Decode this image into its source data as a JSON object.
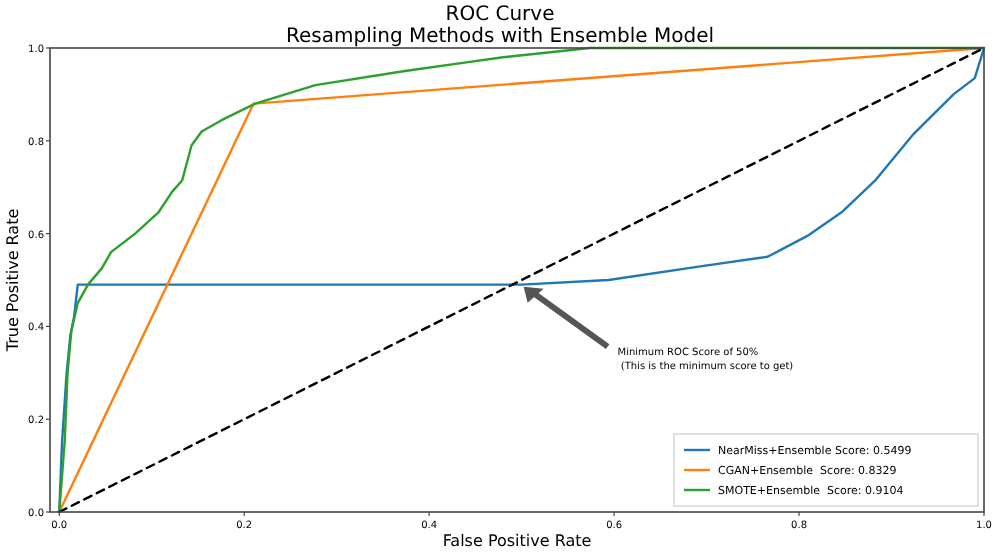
{
  "chart_data": {
    "type": "line",
    "title": "ROC Curve",
    "subtitle": "Resampling Methods with Ensemble Model",
    "xlabel": "False Positive Rate",
    "ylabel": "True Positive Rate",
    "xlim": [
      -0.01,
      1.0
    ],
    "ylim": [
      0,
      1
    ],
    "xticks": [
      {
        "value": 0,
        "label": "0.0"
      },
      {
        "value": 0.2,
        "label": "0.2"
      },
      {
        "value": 0.4,
        "label": "0.4"
      },
      {
        "value": 0.6,
        "label": "0.6"
      },
      {
        "value": 0.8,
        "label": "0.8"
      },
      {
        "value": 1,
        "label": "1.0"
      }
    ],
    "yticks": [
      {
        "value": 0,
        "label": "0.0"
      },
      {
        "value": 0.2,
        "label": "0.2"
      },
      {
        "value": 0.4,
        "label": "0.4"
      },
      {
        "value": 0.6,
        "label": "0.6"
      },
      {
        "value": 0.8,
        "label": "0.8"
      },
      {
        "value": 1,
        "label": "1.0"
      }
    ],
    "grid": false,
    "legend": "bottom right",
    "series": [
      {
        "name": "NearMiss+Ensemble Score: 0.5499",
        "color": "#1f77b4",
        "x": [
          0,
          0.003,
          0.008,
          0.012,
          0.016,
          0.02,
          0.3,
          0.5,
          0.594,
          0.695,
          0.766,
          0.809,
          0.846,
          0.883,
          0.924,
          0.967,
          0.99,
          1.0
        ],
        "values": [
          0,
          0.15,
          0.3,
          0.38,
          0.42,
          0.49,
          0.49,
          0.49,
          0.5,
          0.53,
          0.55,
          0.595,
          0.646,
          0.716,
          0.815,
          0.9,
          0.935,
          1.0
        ]
      },
      {
        "name": "CGAN+Ensemble  Score: 0.8329",
        "color": "#ff7f0e",
        "x": [
          0,
          0.21,
          1.0
        ],
        "values": [
          0,
          0.88,
          1.0
        ]
      },
      {
        "name": "SMOTE+Ensemble  Score: 0.9104",
        "color": "#2ca02c",
        "x": [
          0,
          0.006,
          0.009,
          0.013,
          0.02,
          0.031,
          0.046,
          0.056,
          0.082,
          0.107,
          0.122,
          0.133,
          0.143,
          0.154,
          0.176,
          0.212,
          0.277,
          0.372,
          0.444,
          0.48,
          0.574,
          1.0
        ],
        "values": [
          0,
          0.155,
          0.3,
          0.39,
          0.45,
          0.49,
          0.525,
          0.56,
          0.6,
          0.645,
          0.69,
          0.715,
          0.79,
          0.82,
          0.845,
          0.88,
          0.92,
          0.95,
          0.97,
          0.98,
          1.0,
          1.0
        ]
      },
      {
        "color": "#000000",
        "line_style": "dashed",
        "x": [
          0,
          1
        ],
        "values": [
          0,
          1
        ]
      }
    ],
    "annotations": [
      {
        "text": "Minimum ROC Score of 50%\n (This is the minimum score to get)",
        "x": 0.5,
        "y": 0.49
      }
    ]
  }
}
